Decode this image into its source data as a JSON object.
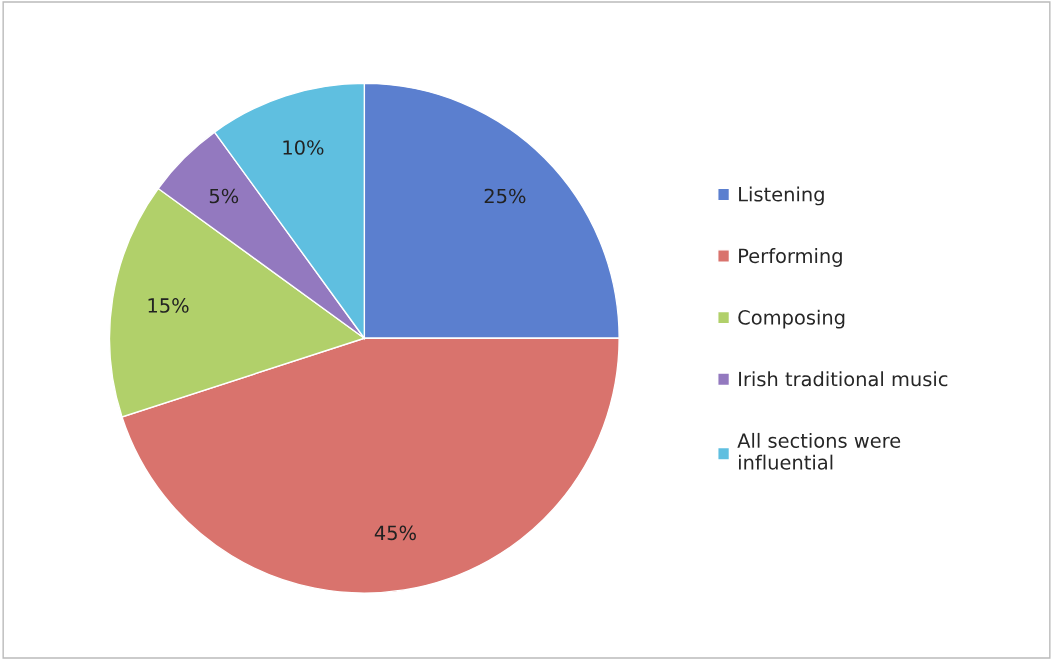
{
  "chart_data": {
    "type": "pie",
    "categories": [
      "Listening",
      "Performing",
      "Composing",
      "Irish traditional music",
      "All sections were\ninfluential"
    ],
    "values": [
      25,
      45,
      15,
      5,
      10
    ],
    "colors": [
      "#5b7fcf",
      "#d9736d",
      "#b1d06a",
      "#9379bf",
      "#5fbfe0"
    ],
    "value_labels": [
      "25%",
      "45%",
      "15%",
      "5%",
      "10%"
    ],
    "legend": "right"
  }
}
